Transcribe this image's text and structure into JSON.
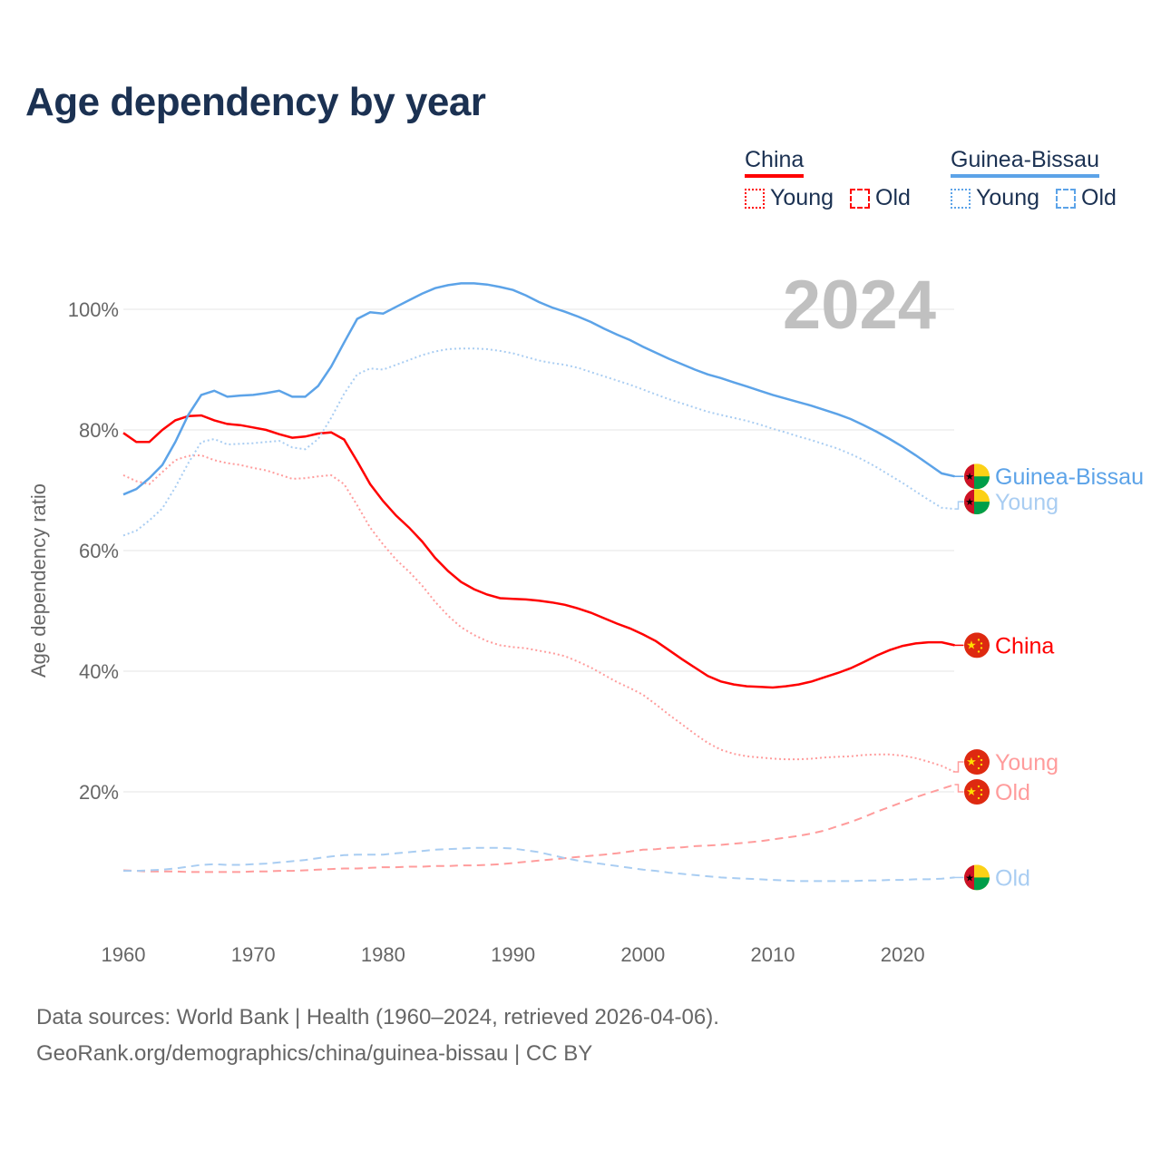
{
  "title": "Age dependency by year",
  "legend": {
    "china": {
      "label": "China",
      "young": "Young",
      "old": "Old",
      "color": "#ff0000"
    },
    "gb": {
      "label": "Guinea-Bissau",
      "young": "Young",
      "old": "Old",
      "color": "#5ca3e8"
    }
  },
  "year_watermark": "2024",
  "footer": {
    "line1": "Data sources: World Bank | Health (1960–2024, retrieved 2026-04-06).",
    "line2": "GeoRank.org/demographics/china/guinea-bissau | CC BY"
  },
  "chart_data": {
    "type": "line",
    "title": "Age dependency by year",
    "xlabel": "",
    "ylabel": "Age dependency ratio",
    "xlim": [
      1960,
      2024
    ],
    "ylim": [
      0,
      110
    ],
    "xticks": [
      "1960",
      "1970",
      "1980",
      "1990",
      "2000",
      "2010",
      "2020"
    ],
    "yticks": [
      "20%",
      "40%",
      "60%",
      "80%",
      "100%"
    ],
    "grid": true,
    "series": [
      {
        "name": "China",
        "end_label": "China",
        "color": "#ff0000",
        "style": "solid",
        "flag": "china",
        "x_start": 1960,
        "values": [
          79.5,
          78,
          78,
          80,
          81.6,
          82.3,
          82.4,
          81.6,
          81,
          80.8,
          80.4,
          80,
          79.3,
          78.7,
          78.9,
          79.4,
          79.6,
          78.4,
          74.8,
          71,
          68.2,
          65.8,
          63.8,
          61.5,
          58.8,
          56.6,
          54.8,
          53.6,
          52.7,
          52.1,
          52,
          51.9,
          51.7,
          51.4,
          51,
          50.4,
          49.7,
          48.8,
          47.9,
          47.1,
          46.1,
          45,
          43.5,
          42,
          40.6,
          39.2,
          38.3,
          37.8,
          37.5,
          37.4,
          37.3,
          37.5,
          37.8,
          38.3,
          39,
          39.7,
          40.5,
          41.5,
          42.6,
          43.5,
          44.2,
          44.6,
          44.8,
          44.8,
          44.3
        ]
      },
      {
        "name": "China Young",
        "end_label": "Young",
        "color": "#ff9c9c",
        "style": "dotted",
        "flag": "china",
        "x_start": 1960,
        "values": [
          72.5,
          71.5,
          71,
          73,
          75,
          75.7,
          75.8,
          75,
          74.5,
          74.2,
          73.7,
          73.3,
          72.6,
          71.9,
          72,
          72.3,
          72.5,
          71,
          67.5,
          63.8,
          61,
          58.5,
          56.5,
          54.2,
          51.5,
          49.2,
          47.3,
          46,
          45,
          44.3,
          44,
          43.8,
          43.4,
          43,
          42.5,
          41.6,
          40.6,
          39.4,
          38.2,
          37.2,
          36.1,
          34.5,
          32.8,
          31.2,
          29.6,
          28.1,
          27,
          26.3,
          25.9,
          25.7,
          25.5,
          25.4,
          25.4,
          25.5,
          25.7,
          25.8,
          25.9,
          26.1,
          26.2,
          26.2,
          26,
          25.6,
          25,
          24.3,
          23.3
        ]
      },
      {
        "name": "China Old",
        "end_label": "Old",
        "color": "#ff9c9c",
        "style": "dashed",
        "flag": "china",
        "x_start": 1960,
        "values": [
          7,
          6.9,
          6.8,
          6.8,
          6.8,
          6.7,
          6.7,
          6.7,
          6.7,
          6.7,
          6.8,
          6.8,
          6.9,
          6.9,
          7,
          7.1,
          7.2,
          7.3,
          7.3,
          7.4,
          7.5,
          7.5,
          7.6,
          7.6,
          7.7,
          7.7,
          7.8,
          7.8,
          7.9,
          8,
          8.2,
          8.4,
          8.6,
          8.8,
          9,
          9.2,
          9.4,
          9.6,
          9.8,
          10.1,
          10.4,
          10.5,
          10.7,
          10.8,
          11,
          11.1,
          11.2,
          11.4,
          11.6,
          11.8,
          12.1,
          12.4,
          12.7,
          13.1,
          13.6,
          14.3,
          15,
          15.8,
          16.7,
          17.5,
          18.3,
          19.1,
          19.8,
          20.5,
          21.2
        ]
      },
      {
        "name": "Guinea-Bissau",
        "end_label": "Guinea-Bissau",
        "color": "#5ca3e8",
        "style": "solid",
        "flag": "gb",
        "x_start": 1960,
        "values": [
          69.3,
          70.2,
          72,
          74.2,
          78,
          82.5,
          85.8,
          86.5,
          85.5,
          85.7,
          85.8,
          86.1,
          86.5,
          85.5,
          85.5,
          87.3,
          90.5,
          94.5,
          98.4,
          99.5,
          99.3,
          100.4,
          101.5,
          102.6,
          103.5,
          104,
          104.3,
          104.3,
          104.1,
          103.7,
          103.2,
          102.3,
          101.2,
          100.3,
          99.6,
          98.8,
          97.9,
          96.8,
          95.8,
          94.9,
          93.8,
          92.8,
          91.8,
          90.9,
          90,
          89.2,
          88.6,
          87.9,
          87.2,
          86.5,
          85.8,
          85.2,
          84.6,
          84,
          83.3,
          82.6,
          81.8,
          80.8,
          79.7,
          78.5,
          77.2,
          75.8,
          74.3,
          72.8,
          72.3
        ]
      },
      {
        "name": "Guinea-Bissau Young",
        "end_label": "Young",
        "color": "#a9cdf2",
        "style": "dotted",
        "flag": "gb",
        "x_start": 1960,
        "values": [
          62.5,
          63.3,
          65,
          67,
          70.5,
          74.5,
          78,
          78.5,
          77.6,
          77.7,
          77.8,
          78,
          78.2,
          77.1,
          76.8,
          78.5,
          82,
          86,
          89.2,
          90.2,
          90,
          90.8,
          91.6,
          92.4,
          93,
          93.4,
          93.5,
          93.5,
          93.4,
          93.1,
          92.7,
          92.1,
          91.5,
          91.1,
          90.8,
          90.3,
          89.6,
          88.9,
          88.2,
          87.5,
          86.7,
          85.9,
          85.1,
          84.4,
          83.7,
          83,
          82.5,
          82,
          81.5,
          80.9,
          80.2,
          79.6,
          78.9,
          78.3,
          77.6,
          76.9,
          76,
          75,
          73.8,
          72.5,
          71.2,
          69.8,
          68.4,
          67.1,
          66.9
        ]
      },
      {
        "name": "Guinea-Bissau Old",
        "end_label": "Old",
        "color": "#a9cdf2",
        "style": "dashed",
        "flag": "gb",
        "x_start": 1960,
        "values": [
          6.9,
          6.9,
          7,
          7.1,
          7.3,
          7.6,
          7.9,
          8,
          7.9,
          7.9,
          8,
          8.1,
          8.3,
          8.5,
          8.7,
          9,
          9.3,
          9.5,
          9.6,
          9.6,
          9.6,
          9.8,
          10,
          10.2,
          10.4,
          10.5,
          10.6,
          10.7,
          10.7,
          10.7,
          10.6,
          10.3,
          10,
          9.5,
          9,
          8.6,
          8.3,
          8,
          7.7,
          7.4,
          7.1,
          6.9,
          6.6,
          6.4,
          6.2,
          6,
          5.8,
          5.7,
          5.6,
          5.5,
          5.4,
          5.3,
          5.2,
          5.2,
          5.2,
          5.2,
          5.2,
          5.3,
          5.3,
          5.4,
          5.4,
          5.5,
          5.5,
          5.6,
          5.8
        ]
      }
    ]
  }
}
